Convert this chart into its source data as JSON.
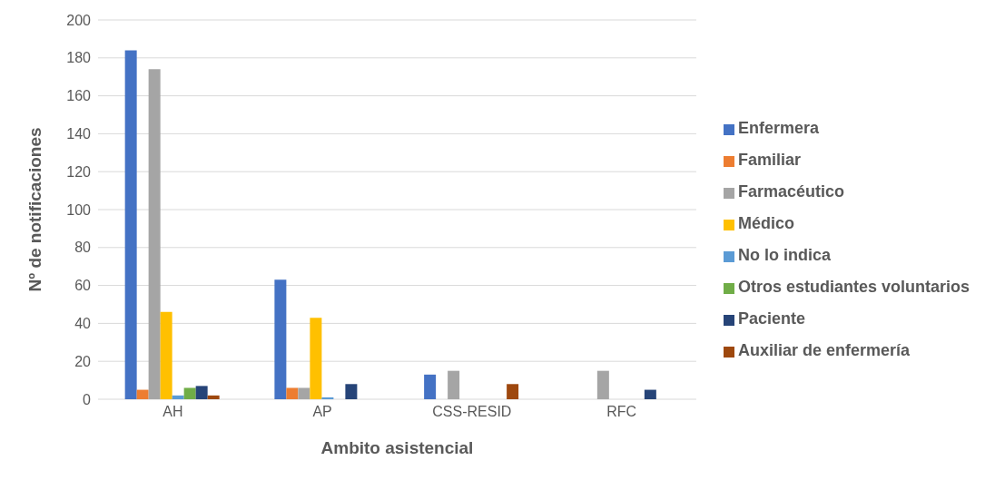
{
  "chart_data": {
    "type": "bar",
    "xlabel": "Ambito asistencial",
    "ylabel": "Nº de notificaciones",
    "categories": [
      "AH",
      "AP",
      "CSS-RESID",
      "RFC"
    ],
    "series": [
      {
        "name": "Enfermera",
        "color": "#4472c4",
        "values": [
          184,
          63,
          13,
          0
        ]
      },
      {
        "name": "Familiar",
        "color": "#ed7d31",
        "values": [
          5,
          6,
          0,
          0
        ]
      },
      {
        "name": "Farmacéutico",
        "color": "#a5a5a5",
        "values": [
          174,
          6,
          15,
          15
        ]
      },
      {
        "name": "Médico",
        "color": "#ffc000",
        "values": [
          46,
          43,
          0,
          0
        ]
      },
      {
        "name": "No lo indica",
        "color": "#5b9bd5",
        "values": [
          2,
          1,
          0,
          0
        ]
      },
      {
        "name": "Otros estudiantes voluntarios",
        "color": "#70ad47",
        "values": [
          6,
          0,
          0,
          0
        ]
      },
      {
        "name": "Paciente",
        "color": "#264478",
        "values": [
          7,
          8,
          0,
          5
        ]
      },
      {
        "name": "Auxiliar de enfermería",
        "color": "#9e480e",
        "values": [
          2,
          0,
          8,
          0
        ]
      }
    ],
    "ylim": [
      0,
      200
    ],
    "yticks": [
      0,
      20,
      40,
      60,
      80,
      100,
      120,
      140,
      160,
      180,
      200
    ],
    "grid": "y",
    "legend": "right"
  }
}
